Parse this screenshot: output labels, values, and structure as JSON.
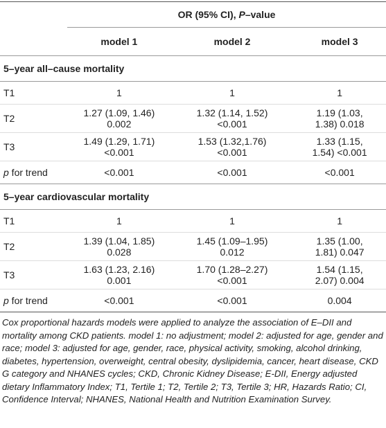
{
  "header": {
    "group_title": [
      {
        "text": "OR (95% CI), "
      },
      {
        "text": "P",
        "italic": true
      },
      {
        "text": "–value"
      }
    ],
    "columns": [
      "model 1",
      "model 2",
      "model 3"
    ]
  },
  "sections": [
    {
      "title": "5–year all–cause mortality",
      "rows": [
        {
          "label": "T1",
          "cells": [
            "1",
            "1",
            "1"
          ]
        },
        {
          "label": "T2",
          "cells": [
            "1.27 (1.09, 1.46) 0.002",
            "1.32 (1.14, 1.52) <0.001",
            "1.19 (1.03, 1.38) 0.018"
          ]
        },
        {
          "label": "T3",
          "cells": [
            "1.49 (1.29, 1.71) <0.001",
            "1.53 (1.32,1.76) <0.001",
            "1.33 (1.15, 1.54) <0.001"
          ]
        },
        {
          "label": [
            {
              "text": "p",
              "italic": true
            },
            {
              "text": " for trend"
            }
          ],
          "cells": [
            "<0.001",
            "<0.001",
            "<0.001"
          ]
        }
      ]
    },
    {
      "title": "5–year cardiovascular mortality",
      "rows": [
        {
          "label": "T1",
          "cells": [
            "1",
            "1",
            "1"
          ]
        },
        {
          "label": "T2",
          "cells": [
            "1.39 (1.04, 1.85) 0.028",
            "1.45 (1.09–1.95) 0.012",
            "1.35 (1.00, 1.81) 0.047"
          ]
        },
        {
          "label": "T3",
          "cells": [
            "1.63 (1.23, 2.16) 0.001",
            "1.70 (1.28–2.27) <0.001",
            "1.54 (1.15, 2.07) 0.004"
          ]
        },
        {
          "label": [
            {
              "text": "p",
              "italic": true
            },
            {
              "text": " for trend"
            }
          ],
          "cells": [
            "<0.001",
            "<0.001",
            "0.004"
          ]
        }
      ]
    }
  ],
  "footnote": "Cox proportional hazards models were applied to analyze the association of E–DII and mortality among CKD patients. model 1: no adjustment; model 2: adjusted for age, gender and race; model 3: adjusted for age, gender, race, physical activity, smoking, alcohol drinking, diabetes, hypertension, overweight, central obesity, dyslipidemia, cancer, heart disease, CKD G category and NHANES cycles; CKD, Chronic Kidney Disease; E-DII, Energy adjusted dietary Inflammatory Index; T1, Tertile 1; T2, Tertile 2; T3, Tertile 3; HR, Hazards Ratio; CI, Confidence Interval; NHANES, National Health and Nutrition Examination Survey."
}
